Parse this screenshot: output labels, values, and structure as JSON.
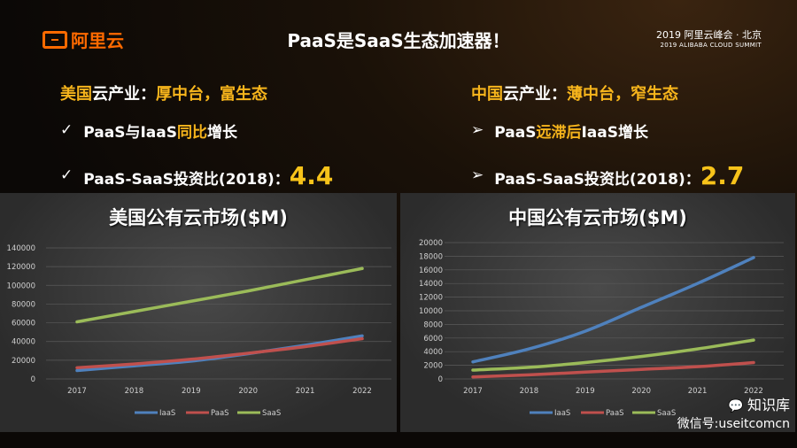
{
  "header": {
    "logo": "阿里云",
    "title": "PaaS是SaaS生态加速器！",
    "summit_cn": "2019 阿里云峰会 · 北京",
    "summit_en": "2019 ALIBABA CLOUD SUMMIT"
  },
  "left": {
    "heading": [
      {
        "t": "美国",
        "hl": true
      },
      {
        "t": "云产业：",
        "hl": false
      },
      {
        "t": "厚中台，富生态",
        "hl": true
      }
    ],
    "bullet": "✓",
    "line1": [
      {
        "t": "PaaS与IaaS",
        "hl": false
      },
      {
        "t": "同比",
        "hl": true
      },
      {
        "t": "增长",
        "hl": false
      }
    ],
    "line2": "PaaS-SaaS投资比(2018)：",
    "ratio": "4.4"
  },
  "right": {
    "heading": [
      {
        "t": "中国",
        "hl": true
      },
      {
        "t": "云产业：",
        "hl": false
      },
      {
        "t": "薄中台，窄生态",
        "hl": true
      }
    ],
    "bullet": "➢",
    "line1": [
      {
        "t": "PaaS",
        "hl": false
      },
      {
        "t": "远滞后",
        "hl": true
      },
      {
        "t": "IaaS增长",
        "hl": false
      }
    ],
    "line2": "PaaS-SaaS投资比(2018)：",
    "ratio": "2.7"
  },
  "watermark": {
    "name": "知识库",
    "id": "微信号:useitcomcn"
  },
  "colors": {
    "IaaS": "#4f81bd",
    "PaaS": "#c0504d",
    "SaaS": "#9bbb59",
    "accent": "#f7b51c"
  },
  "chart_data": [
    {
      "type": "line",
      "title": "美国公有云市场($M)",
      "categories": [
        "2017",
        "2018",
        "2019",
        "2020",
        "2021",
        "2022"
      ],
      "ylim": [
        0,
        140000
      ],
      "yticks": [
        0,
        20000,
        40000,
        60000,
        80000,
        100000,
        120000,
        140000
      ],
      "grid": true,
      "legend": "bottom",
      "series": [
        {
          "name": "IaaS",
          "values": [
            9000,
            14000,
            19000,
            27000,
            36000,
            46000
          ]
        },
        {
          "name": "PaaS",
          "values": [
            12000,
            16000,
            21000,
            27500,
            34500,
            43000
          ]
        },
        {
          "name": "SaaS",
          "values": [
            61000,
            72000,
            83000,
            94000,
            106000,
            118000
          ]
        }
      ]
    },
    {
      "type": "line",
      "title": "中国公有云市场($M)",
      "categories": [
        "2017",
        "2018",
        "2019",
        "2020",
        "2021",
        "2022"
      ],
      "ylim": [
        0,
        20000
      ],
      "yticks": [
        0,
        2000,
        4000,
        6000,
        8000,
        10000,
        12000,
        14000,
        16000,
        18000,
        20000
      ],
      "grid": true,
      "legend": "bottom",
      "series": [
        {
          "name": "IaaS",
          "values": [
            2500,
            4400,
            7000,
            10500,
            14000,
            17800
          ]
        },
        {
          "name": "PaaS",
          "values": [
            300,
            600,
            1000,
            1400,
            1800,
            2400
          ]
        },
        {
          "name": "SaaS",
          "values": [
            1300,
            1700,
            2400,
            3300,
            4400,
            5700
          ]
        }
      ]
    }
  ]
}
